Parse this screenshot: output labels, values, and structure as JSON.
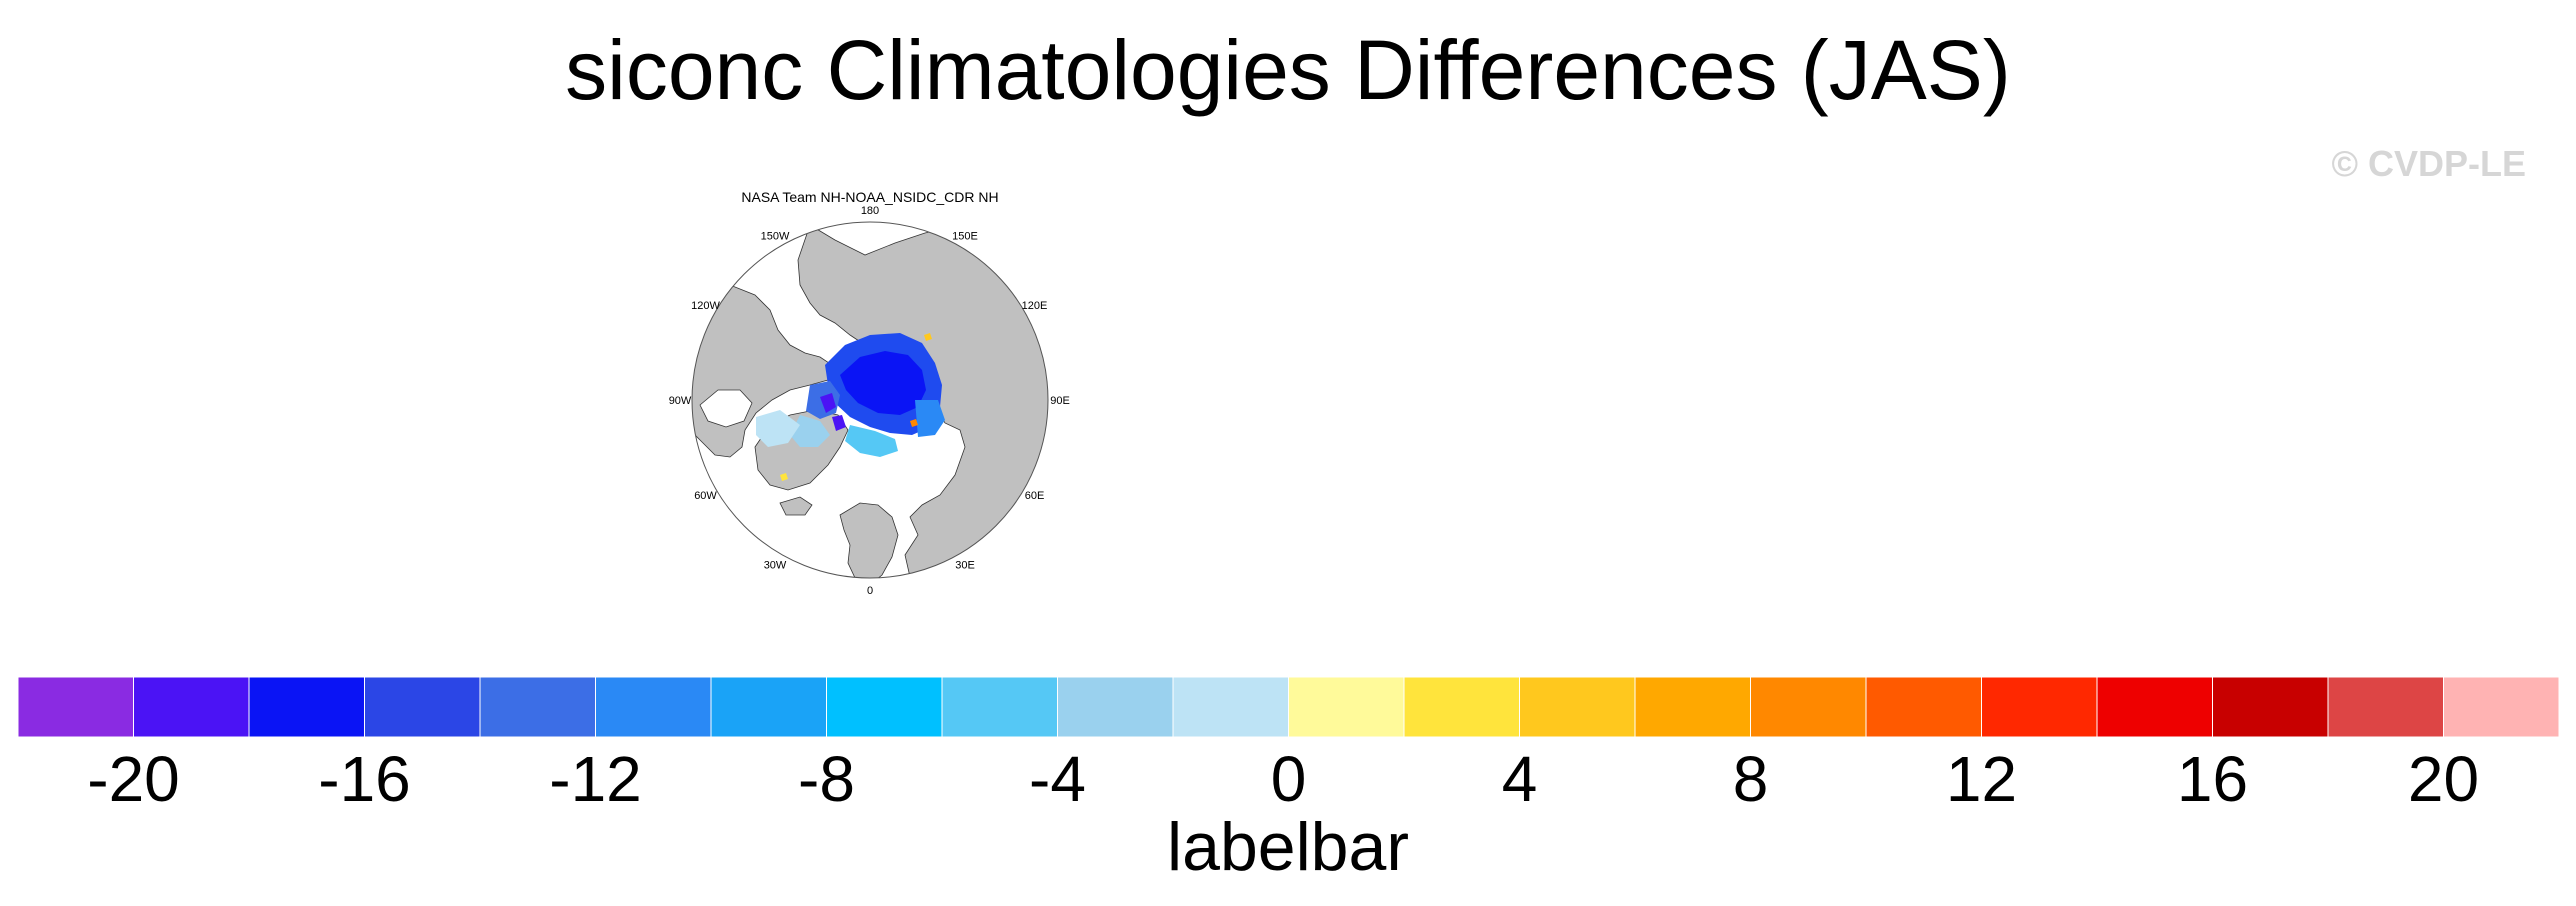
{
  "title": "siconc Climatologies Differences (JAS)",
  "watermark": "© CVDP-LE",
  "map": {
    "subtitle": "NASA Team NH-NOAA_NSIDC_CDR NH",
    "projection": "north-polar-stereographic",
    "land_color": "#c0c0c0",
    "ocean_color": "#ffffff",
    "lon_labels": [
      "180",
      "150E",
      "120E",
      "90E",
      "60E",
      "30E",
      "0",
      "30W",
      "60W",
      "90W",
      "120W",
      "150W"
    ]
  },
  "colorbar": {
    "title": "labelbar",
    "min": -22,
    "max": 22,
    "step": 2,
    "colors": [
      "#8a2be2",
      "#4b13f5",
      "#0a14f5",
      "#2b46e6",
      "#3c6ee6",
      "#2a89f5",
      "#1aa3f7",
      "#00c0ff",
      "#55c8f5",
      "#9ad1ee",
      "#bde3f5",
      "#fffa9a",
      "#ffe43c",
      "#ffc81e",
      "#ffa800",
      "#ff8800",
      "#ff5a00",
      "#ff2800",
      "#ee0000",
      "#c80000",
      "#dd4545",
      "#ffb3b3"
    ],
    "tick_labels": [
      "-20",
      "-16",
      "-12",
      "-8",
      "-4",
      "0",
      "4",
      "8",
      "12",
      "16",
      "20"
    ]
  }
}
